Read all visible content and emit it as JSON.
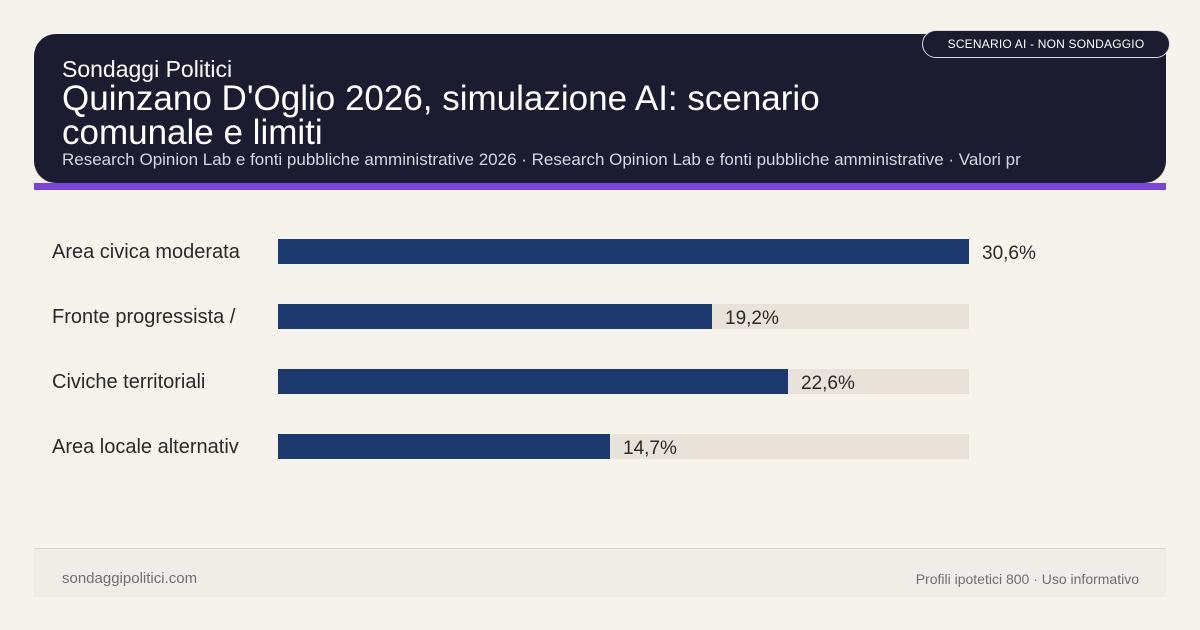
{
  "header": {
    "brand": "Sondaggi Politici",
    "title": "Quinzano D'Oglio 2026, simulazione AI: scenario comunale e limiti",
    "subtitle": "Research Opinion Lab e fonti pubbliche amministrative 2026 · Research Opinion Lab e fonti pubbliche amministrative · Valori pr",
    "badge": "SCENARIO AI - NON SONDAGGIO"
  },
  "colors": {
    "header_bg": "#1c1c30",
    "accent": "#7a44d6",
    "bar": "#1d3a6e",
    "track": "#e8e2da",
    "page_bg": "#f6f2ec"
  },
  "chart_data": {
    "type": "bar",
    "orientation": "horizontal",
    "categories": [
      "Area civica moderata",
      "Fronte progressista /",
      "Civiche territoriali",
      "Area locale alternativ"
    ],
    "values": [
      30.6,
      19.2,
      22.6,
      14.7
    ],
    "value_labels": [
      "30,6%",
      "19,2%",
      "22,6%",
      "14,7%"
    ],
    "unit": "%",
    "xlim": [
      0,
      30.6
    ],
    "grid": false
  },
  "footer": {
    "site": "sondaggipolitici.com",
    "note": "Profili ipotetici 800 · Uso informativo"
  }
}
